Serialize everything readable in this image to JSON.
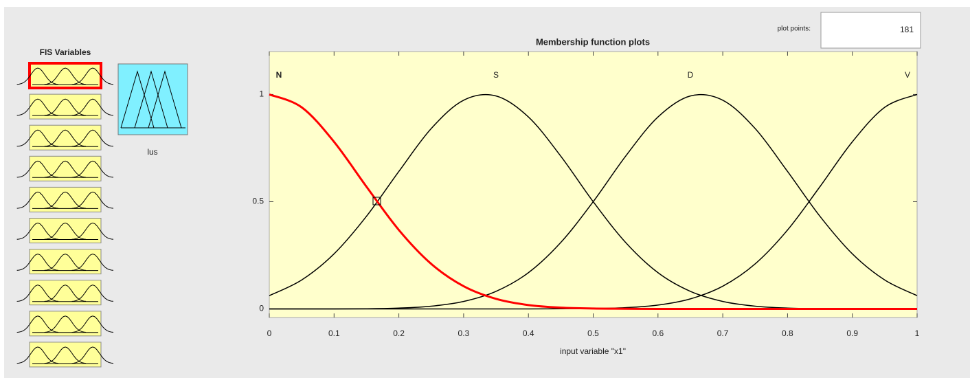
{
  "panel": {
    "title": "FIS Variables",
    "output_label": "lus"
  },
  "plot_points": {
    "label": "plot points:",
    "value": 181
  },
  "chart_data": {
    "type": "line",
    "title": "Membership function plots",
    "x_label": "input variable \"x1\"",
    "x": [
      0,
      0.05,
      0.1,
      0.15,
      0.2,
      0.25,
      0.3,
      0.35,
      0.4,
      0.45,
      0.5,
      0.55,
      0.6,
      0.65,
      0.7,
      0.75,
      0.8,
      0.85,
      0.9,
      0.95,
      1
    ],
    "series": [
      {
        "name": "N",
        "color": "#ff0000",
        "values": [
          1,
          0.94,
          0.779,
          0.57,
          0.368,
          0.21,
          0.106,
          0.047,
          0.018,
          0.006,
          0.002,
          0.001,
          0,
          0,
          0,
          0,
          0,
          0,
          0,
          0,
          0
        ]
      },
      {
        "name": "S",
        "color": "#000000",
        "values": [
          0.062,
          0.135,
          0.257,
          0.432,
          0.641,
          0.841,
          0.973,
          0.993,
          0.895,
          0.712,
          0.5,
          0.31,
          0.169,
          0.082,
          0.035,
          0.013,
          0.004,
          0.001,
          0,
          0,
          0
        ]
      },
      {
        "name": "D",
        "color": "#000000",
        "values": [
          0,
          0,
          0,
          0.001,
          0.004,
          0.013,
          0.035,
          0.082,
          0.169,
          0.31,
          0.5,
          0.712,
          0.895,
          0.993,
          0.973,
          0.841,
          0.641,
          0.432,
          0.257,
          0.135,
          0.062
        ]
      },
      {
        "name": "V",
        "color": "#000000",
        "values": [
          0,
          0,
          0,
          0,
          0,
          0,
          0,
          0,
          0,
          0.001,
          0.002,
          0.006,
          0.018,
          0.047,
          0.106,
          0.21,
          0.368,
          0.57,
          0.779,
          0.94,
          1
        ]
      }
    ],
    "xlim": [
      0,
      1
    ],
    "ylim": [
      -0.04,
      1.2
    ],
    "xticks": [
      0,
      0.1,
      0.2,
      0.3,
      0.4,
      0.5,
      0.6,
      0.7,
      0.8,
      0.9,
      1
    ],
    "yticks": [
      0,
      0.5,
      1
    ]
  }
}
